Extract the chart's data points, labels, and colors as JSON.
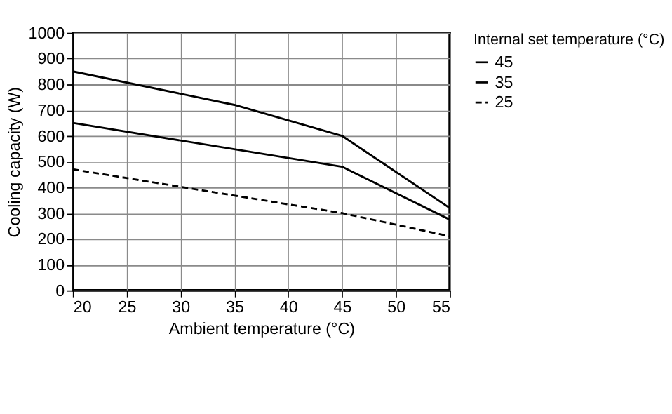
{
  "chart_data": {
    "type": "line",
    "xlabel": "Ambient temperature (°C)",
    "ylabel": "Cooling capacity (W)",
    "legend_title": "Internal set temperature (°C)",
    "x": [
      20,
      35,
      45,
      55
    ],
    "series": [
      {
        "name": "45",
        "color": "#000000",
        "line_style": "solid",
        "values": [
          850,
          720,
          600,
          320
        ]
      },
      {
        "name": "35",
        "color": "#000000",
        "line_style": "solid",
        "values": [
          650,
          null,
          480,
          275
        ]
      },
      {
        "name": "25",
        "color": "#000000",
        "line_style": "dashed",
        "values": [
          470,
          null,
          300,
          210
        ]
      }
    ],
    "xlim": [
      20,
      55
    ],
    "xticks": [
      20,
      25,
      30,
      35,
      40,
      45,
      50,
      55
    ],
    "ylim": [
      0,
      1000
    ],
    "yticks": [
      0,
      100,
      200,
      300,
      400,
      500,
      600,
      700,
      800,
      900,
      1000
    ],
    "grid": true,
    "legend": "right",
    "marker": "none"
  }
}
